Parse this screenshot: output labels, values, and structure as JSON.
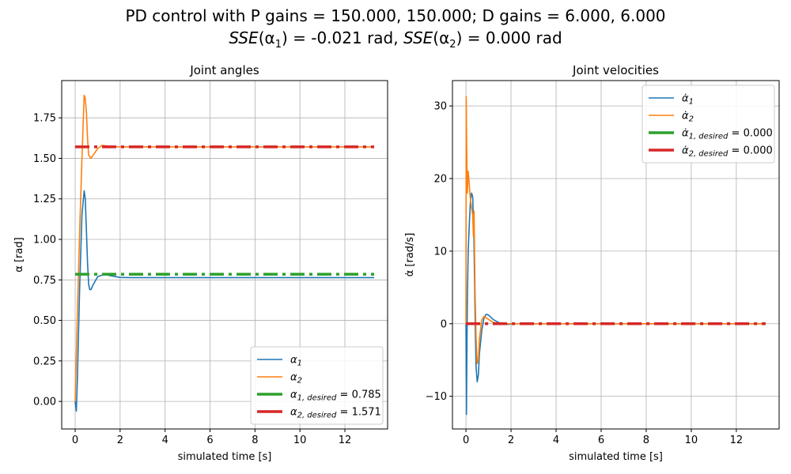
{
  "title": {
    "line1": "PD control with P gains = 150.000, 150.000; D gains = 6.000, 6.000",
    "line2_a": "SSE",
    "line2_b": "(α",
    "line2_b_sub": "1",
    "line2_c": ") = -0.021 rad, ",
    "line2_d": "SSE",
    "line2_e": "(α",
    "line2_e_sub": "2",
    "line2_f": ") = 0.000 rad"
  },
  "colors": {
    "alpha1": "#1f77b4",
    "alpha2": "#ff7f0e",
    "desired1": "#2ca02c",
    "desired2": "#d62728",
    "grid": "#b0b0b0"
  },
  "chart_data": [
    {
      "type": "line",
      "title": "Joint angles",
      "xlabel": "simulated time [s]",
      "ylabel": "α [rad]",
      "xlim": [
        -0.6,
        13.9
      ],
      "ylim": [
        -0.17,
        1.98
      ],
      "xticks": [
        0,
        2,
        4,
        6,
        8,
        10,
        12
      ],
      "yticks": [
        0.0,
        0.25,
        0.5,
        0.75,
        1.0,
        1.25,
        1.5,
        1.75
      ],
      "ytick_labels": [
        "0.00",
        "0.25",
        "0.50",
        "0.75",
        "1.00",
        "1.25",
        "1.50",
        "1.75"
      ],
      "grid": true,
      "legend_position": "lower right",
      "series": [
        {
          "name": "α1",
          "style": "solid",
          "color": "#1f77b4",
          "x": [
            0,
            0.05,
            0.1,
            0.2,
            0.3,
            0.4,
            0.45,
            0.5,
            0.55,
            0.6,
            0.65,
            0.7,
            0.8,
            1.0,
            1.3,
            1.6,
            2.0,
            2.5,
            3.0,
            13.3
          ],
          "y": [
            0,
            -0.06,
            0.15,
            0.7,
            1.15,
            1.3,
            1.25,
            1.05,
            0.85,
            0.72,
            0.69,
            0.69,
            0.72,
            0.77,
            0.785,
            0.775,
            0.765,
            0.764,
            0.764,
            0.764
          ]
        },
        {
          "name": "α2",
          "style": "solid",
          "color": "#ff7f0e",
          "x": [
            0,
            0.1,
            0.2,
            0.3,
            0.4,
            0.45,
            0.5,
            0.55,
            0.6,
            0.7,
            0.8,
            1.0,
            1.2,
            1.5,
            2.0,
            13.3
          ],
          "y": [
            0,
            0.55,
            1.05,
            1.5,
            1.89,
            1.87,
            1.78,
            1.62,
            1.52,
            1.5,
            1.52,
            1.56,
            1.58,
            1.575,
            1.571,
            1.571
          ]
        },
        {
          "name": "α1,desired = 0.785",
          "style": "dashdot",
          "color": "#2ca02c",
          "x": [
            0,
            13.3
          ],
          "y": [
            0.785,
            0.785
          ]
        },
        {
          "name": "α2,desired = 1.571",
          "style": "dashdot",
          "color": "#d62728",
          "x": [
            0,
            13.3
          ],
          "y": [
            1.571,
            1.571
          ]
        }
      ]
    },
    {
      "type": "line",
      "title": "Joint velocities",
      "xlabel": "simulated time [s]",
      "ylabel": "α̇ [rad/s]",
      "xlim": [
        -0.6,
        13.9
      ],
      "ylim": [
        -14.5,
        33.5
      ],
      "xticks": [
        0,
        2,
        4,
        6,
        8,
        10,
        12
      ],
      "yticks": [
        -10,
        0,
        10,
        20,
        30
      ],
      "ytick_labels": [
        "−10",
        "0",
        "10",
        "20",
        "30"
      ],
      "grid": true,
      "legend_position": "upper right",
      "series": [
        {
          "name": "α̇1",
          "style": "solid",
          "color": "#1f77b4",
          "x": [
            0,
            0.02,
            0.04,
            0.06,
            0.1,
            0.15,
            0.2,
            0.25,
            0.3,
            0.35,
            0.4,
            0.42,
            0.45,
            0.5,
            0.55,
            0.6,
            0.7,
            0.8,
            0.9,
            1.0,
            1.2,
            1.5,
            1.8,
            2.2,
            3.0,
            13.3
          ],
          "y": [
            0,
            -12.5,
            -5,
            3,
            10,
            14,
            17,
            18,
            17.5,
            12,
            2,
            -2,
            -6,
            -8,
            -7,
            -4,
            -1,
            0.8,
            1.3,
            1.2,
            0.6,
            0.1,
            -0.1,
            0,
            0,
            0
          ]
        },
        {
          "name": "α̇2",
          "style": "solid",
          "color": "#ff7f0e",
          "x": [
            0,
            0.01,
            0.03,
            0.06,
            0.1,
            0.15,
            0.2,
            0.25,
            0.3,
            0.33,
            0.36,
            0.4,
            0.45,
            0.5,
            0.55,
            0.6,
            0.7,
            0.8,
            0.9,
            1.0,
            1.2,
            1.5,
            2.0,
            13.3
          ],
          "y": [
            0,
            31.3,
            25,
            18,
            21,
            19,
            17,
            16,
            15,
            12,
            15.5,
            5,
            -2,
            -5.5,
            -5,
            -2,
            0.5,
            1,
            0.8,
            0.6,
            0.2,
            0,
            0,
            0
          ]
        },
        {
          "name": "α̇1,desired = 0.000",
          "style": "dashdot",
          "color": "#2ca02c",
          "x": [
            0,
            13.3
          ],
          "y": [
            0,
            0
          ]
        },
        {
          "name": "α̇2,desired = 0.000",
          "style": "dashdot",
          "color": "#d62728",
          "x": [
            0,
            13.3
          ],
          "y": [
            0,
            0
          ]
        }
      ]
    }
  ],
  "legend_labels": {
    "left": [
      {
        "sym": "α",
        "sub": "1",
        "suffix": ""
      },
      {
        "sym": "α",
        "sub": "2",
        "suffix": ""
      },
      {
        "sym": "α",
        "sub": "1, desired",
        "suffix": " = 0.785"
      },
      {
        "sym": "α",
        "sub": "2, desired",
        "suffix": " = 1.571"
      }
    ],
    "right": [
      {
        "sym": "α̇",
        "sub": "1",
        "suffix": ""
      },
      {
        "sym": "α̇",
        "sub": "2",
        "suffix": ""
      },
      {
        "sym": "α̇",
        "sub": "1, desired",
        "suffix": " = 0.000"
      },
      {
        "sym": "α̇",
        "sub": "2, desired",
        "suffix": " = 0.000"
      }
    ]
  }
}
